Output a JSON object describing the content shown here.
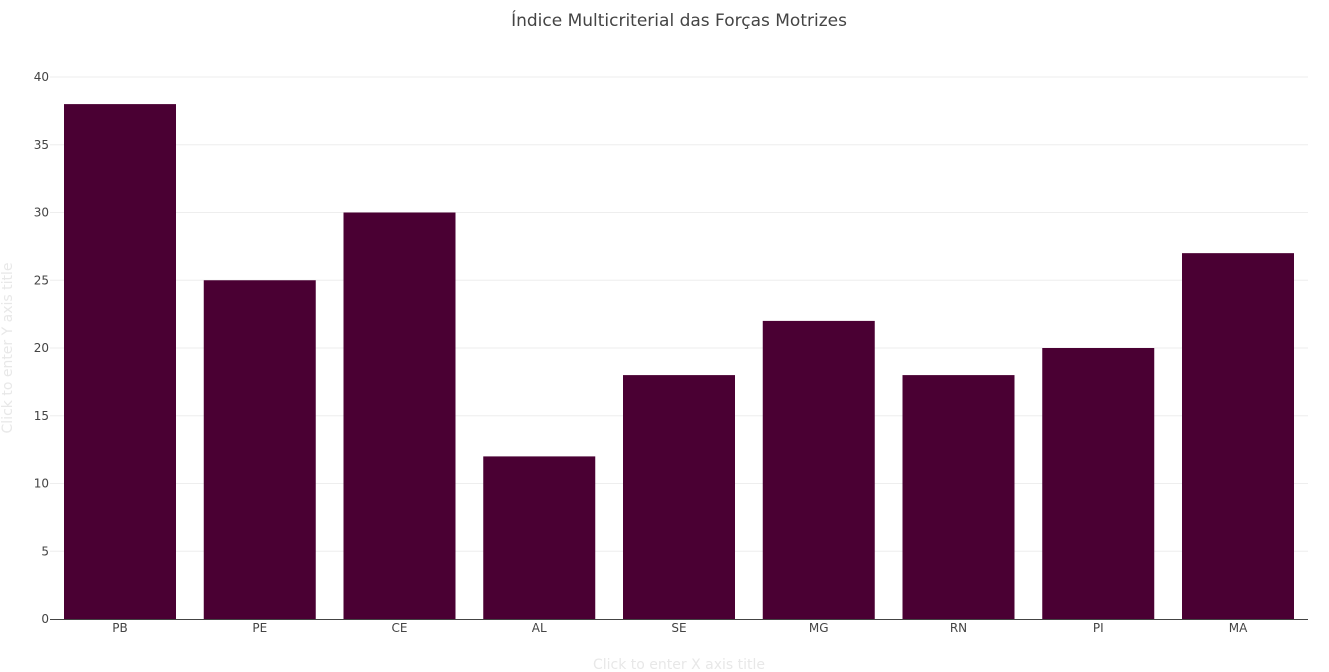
{
  "chart_data": {
    "type": "bar",
    "title": "Índice Multicriterial das Forças Motrizes",
    "xlabel_placeholder": "Click to enter X axis title",
    "ylabel_placeholder": "Click to enter Y axis title",
    "categories": [
      "PB",
      "PE",
      "CE",
      "AL",
      "SE",
      "MG",
      "RN",
      "PI",
      "MA"
    ],
    "values": [
      38,
      25,
      30,
      12,
      18,
      22,
      18,
      20,
      27
    ],
    "ylim": [
      0,
      40
    ],
    "yticks": [
      0,
      5,
      10,
      15,
      20,
      25,
      30,
      35,
      40
    ],
    "grid": true,
    "bar_color": "#4a0033"
  }
}
